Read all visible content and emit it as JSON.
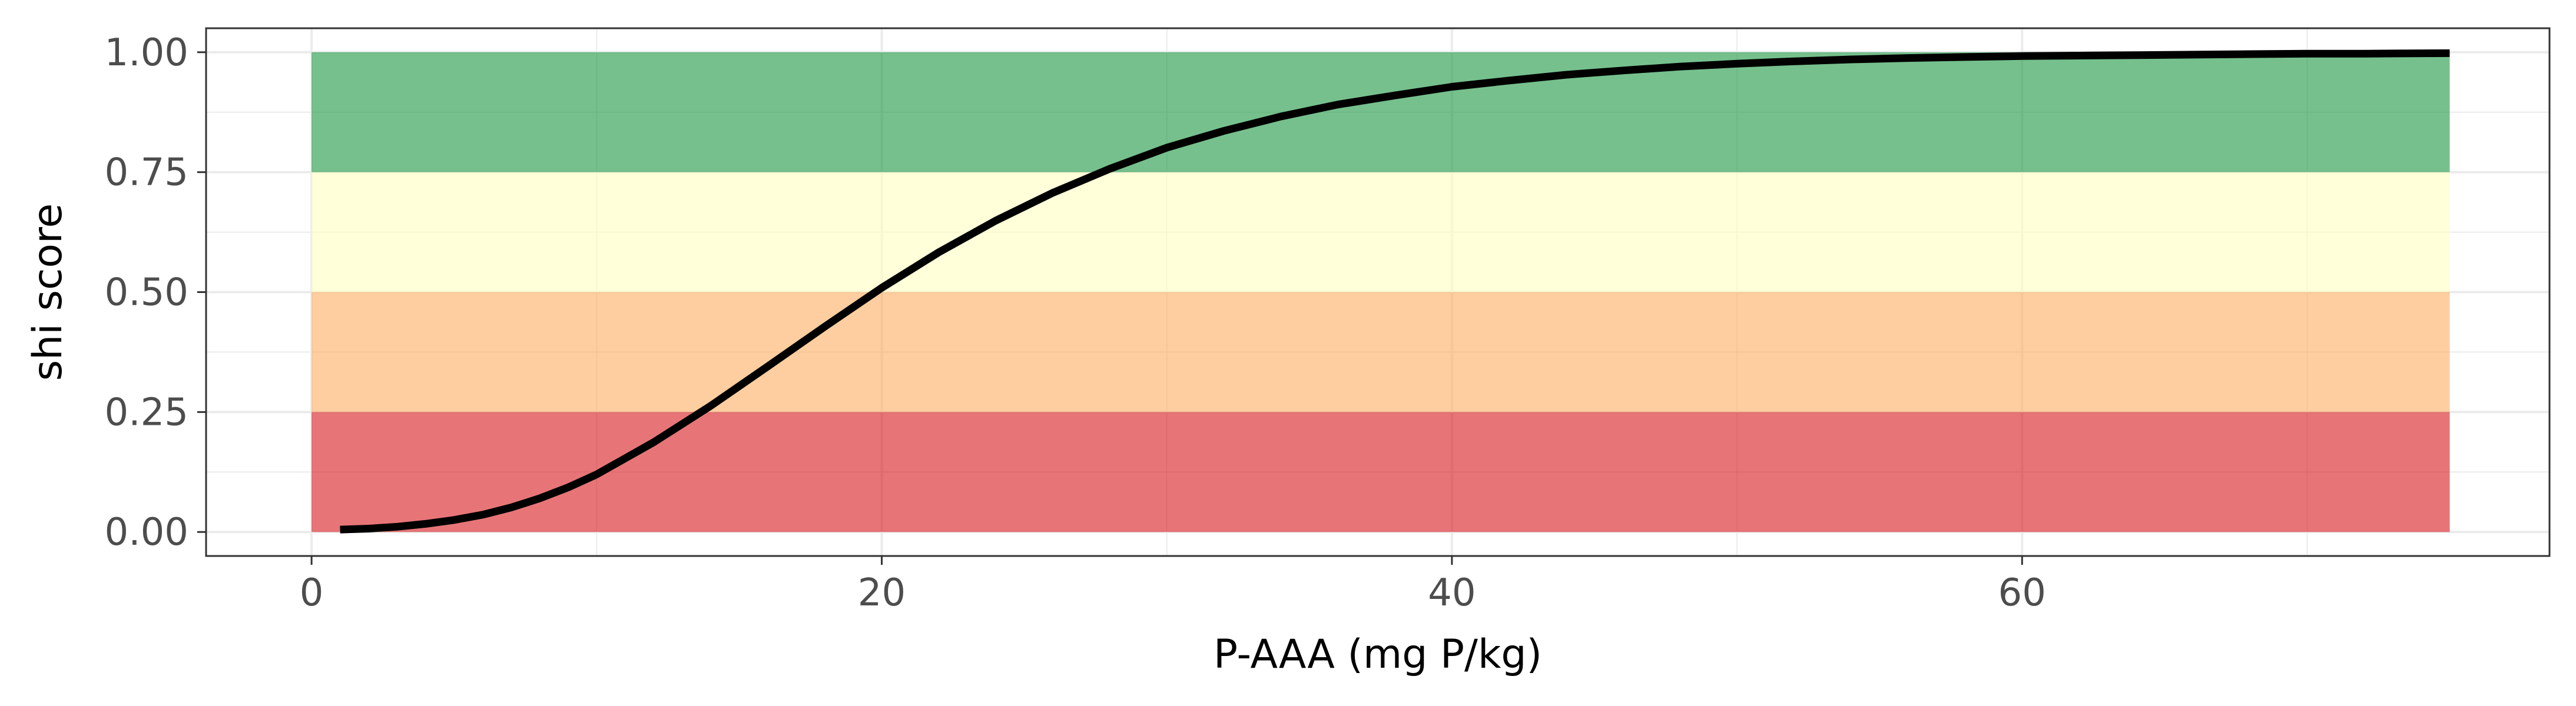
{
  "chart_data": {
    "type": "line",
    "title": "",
    "xlabel": "P-AAA (mg P/kg)",
    "ylabel": "shi score",
    "xlim": [
      -3.7,
      78.5
    ],
    "ylim": [
      -0.05,
      1.05
    ],
    "x_ticks": [
      0,
      20,
      40,
      60
    ],
    "x_tick_labels": [
      "0",
      "20",
      "40",
      "60"
    ],
    "y_ticks": [
      0,
      0.25,
      0.5,
      0.75,
      1.0
    ],
    "y_tick_labels": [
      "0.00",
      "0.25",
      "0.50",
      "0.75",
      "1.00"
    ],
    "grid": true,
    "legend": "none",
    "bands": [
      {
        "xmin": 0,
        "xmax": 75,
        "ymin": 0.0,
        "ymax": 0.25,
        "color": "#d7191c"
      },
      {
        "xmin": 0,
        "xmax": 75,
        "ymin": 0.25,
        "ymax": 0.5,
        "color": "#fdae61"
      },
      {
        "xmin": 0,
        "xmax": 75,
        "ymin": 0.5,
        "ymax": 0.75,
        "color": "#ffffc0"
      },
      {
        "xmin": 0,
        "xmax": 75,
        "ymin": 0.75,
        "ymax": 1.0,
        "color": "#1a9641"
      }
    ],
    "series": [
      {
        "color": "#000000",
        "x": [
          1,
          2,
          3,
          4,
          5,
          6,
          7,
          8,
          9,
          10,
          12,
          14,
          16,
          18,
          20,
          22,
          24,
          26,
          28,
          30,
          32,
          34,
          36,
          38,
          40,
          42,
          44,
          46,
          48,
          50,
          52,
          54,
          56,
          58,
          60,
          62,
          64,
          66,
          68,
          70,
          72,
          75
        ],
        "y": [
          0.005,
          0.007,
          0.011,
          0.017,
          0.025,
          0.036,
          0.051,
          0.07,
          0.093,
          0.12,
          0.187,
          0.263,
          0.345,
          0.428,
          0.509,
          0.583,
          0.649,
          0.707,
          0.757,
          0.801,
          0.836,
          0.866,
          0.891,
          0.91,
          0.928,
          0.941,
          0.953,
          0.962,
          0.97,
          0.976,
          0.981,
          0.985,
          0.988,
          0.99,
          0.992,
          0.993,
          0.994,
          0.995,
          0.996,
          0.997,
          0.997,
          0.998
        ]
      }
    ]
  }
}
